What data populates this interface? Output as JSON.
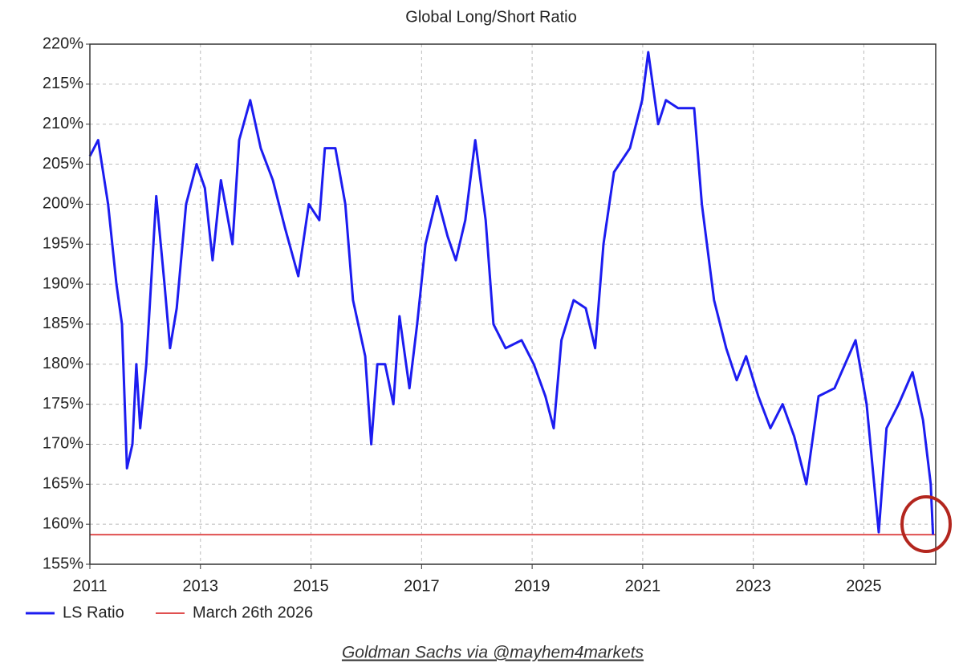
{
  "chart_data": {
    "type": "line",
    "title": "Global Long/Short Ratio",
    "x": [
      2011.0,
      2011.15,
      2011.33,
      2011.48,
      2011.58,
      2011.67,
      2011.77,
      2011.84,
      2011.91,
      2012.02,
      2012.2,
      2012.35,
      2012.45,
      2012.57,
      2012.74,
      2012.93,
      2013.08,
      2013.22,
      2013.37,
      2013.58,
      2013.7,
      2013.9,
      2014.09,
      2014.31,
      2014.53,
      2014.77,
      2014.96,
      2015.15,
      2015.25,
      2015.44,
      2015.62,
      2015.76,
      2015.98,
      2016.09,
      2016.2,
      2016.34,
      2016.49,
      2016.6,
      2016.78,
      2016.92,
      2017.07,
      2017.28,
      2017.47,
      2017.62,
      2017.79,
      2017.97,
      2018.16,
      2018.3,
      2018.52,
      2018.81,
      2019.03,
      2019.24,
      2019.39,
      2019.53,
      2019.75,
      2019.97,
      2020.14,
      2020.29,
      2020.48,
      2020.77,
      2020.99,
      2021.1,
      2021.28,
      2021.42,
      2021.64,
      2021.93,
      2022.07,
      2022.29,
      2022.51,
      2022.7,
      2022.87,
      2023.09,
      2023.31,
      2023.53,
      2023.74,
      2023.96,
      2024.18,
      2024.47,
      2024.85,
      2025.05,
      2025.27,
      2025.41,
      2025.63,
      2025.88,
      2026.07,
      2026.21,
      2026.25
    ],
    "series": [
      {
        "name": "LS Ratio",
        "color": "#1c1cf0",
        "values": [
          206,
          208,
          200,
          190,
          185,
          167,
          170,
          180,
          172,
          180,
          201,
          190,
          182,
          187,
          200,
          205,
          202,
          193,
          203,
          195,
          208,
          213,
          207,
          203,
          197,
          191,
          200,
          198,
          207,
          207,
          200,
          188,
          181,
          170,
          180,
          180,
          175,
          186,
          177,
          185,
          195,
          201,
          196,
          193,
          198,
          208,
          198,
          185,
          182,
          183,
          180,
          176,
          172,
          183,
          188,
          187,
          182,
          195,
          204,
          207,
          213,
          219,
          210,
          213,
          212,
          212,
          200,
          188,
          182,
          178,
          181,
          176,
          172,
          175,
          171,
          165,
          176,
          177,
          183,
          175,
          159,
          172,
          175,
          179,
          173,
          165,
          158.7
        ]
      }
    ],
    "reference_line": {
      "name": "March 26th 2026",
      "color": "#e05050",
      "value": 158.7
    },
    "xlim": [
      2011,
      2026.3
    ],
    "xticks": [
      2011,
      2013,
      2015,
      2017,
      2019,
      2021,
      2023,
      2025
    ],
    "ylim": [
      155,
      220
    ],
    "yticks": [
      {
        "value": 155,
        "label": "155%"
      },
      {
        "value": 160,
        "label": "160%"
      },
      {
        "value": 165,
        "label": "165%"
      },
      {
        "value": 170,
        "label": "170%"
      },
      {
        "value": 175,
        "label": "175%"
      },
      {
        "value": 180,
        "label": "180%"
      },
      {
        "value": 185,
        "label": "185%"
      },
      {
        "value": 190,
        "label": "190%"
      },
      {
        "value": 195,
        "label": "195%"
      },
      {
        "value": 200,
        "label": "200%"
      },
      {
        "value": 205,
        "label": "205%"
      },
      {
        "value": 210,
        "label": "210%"
      },
      {
        "value": 215,
        "label": "215%"
      },
      {
        "value": 220,
        "label": "220%"
      }
    ],
    "grid": true,
    "source": "Goldman Sachs via @mayhem4markets"
  }
}
